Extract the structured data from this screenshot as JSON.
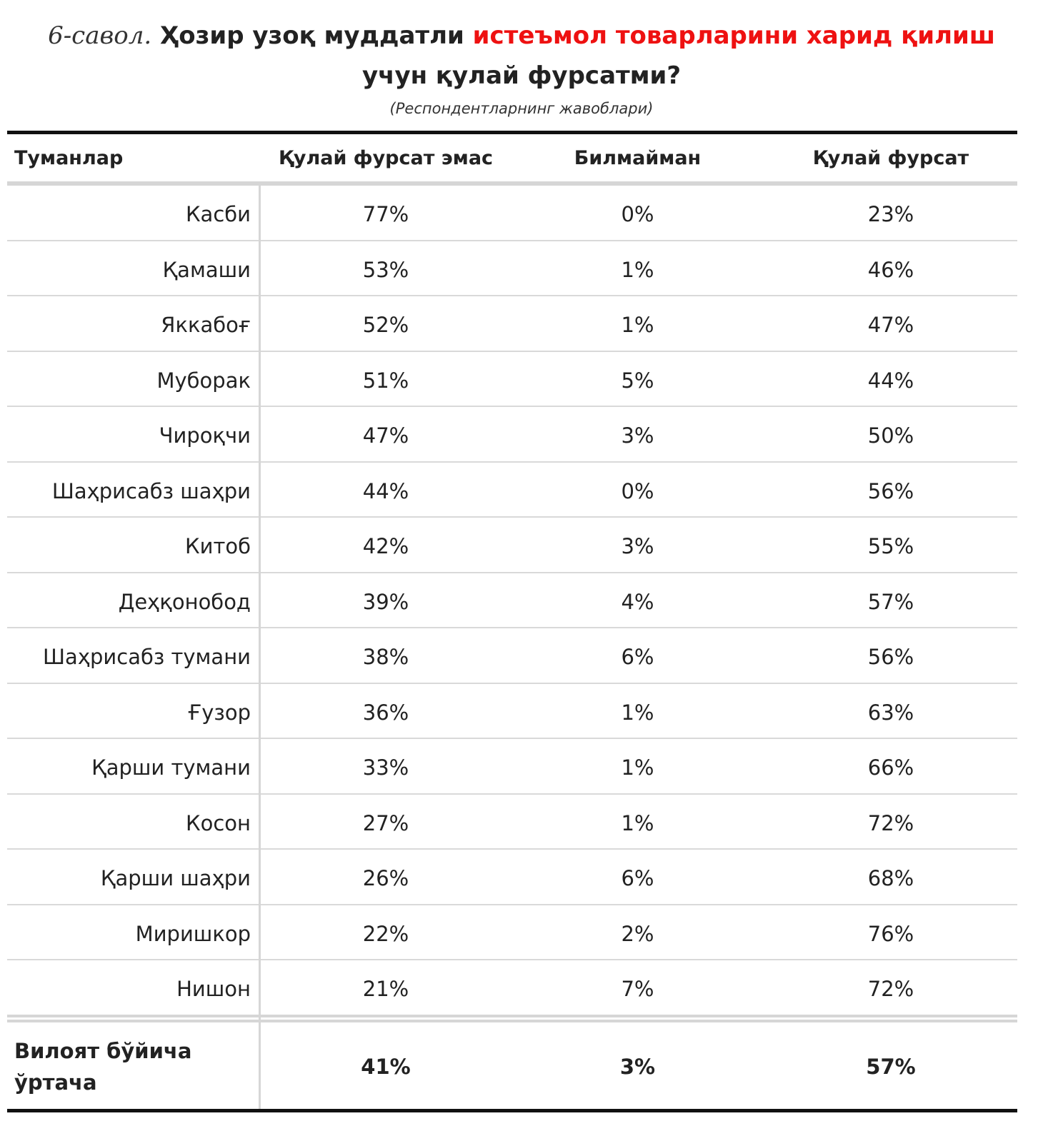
{
  "title": {
    "question_number": "6-савол.",
    "part1": " Ҳозир узоқ муддатли ",
    "highlight": "истеъмол товарларини харид қилиш",
    "part2": "учун қулай фурсатми?"
  },
  "subtitle": "(Респондентларнинг жавоблари)",
  "colors": {
    "highlight": "#ee1111",
    "text": "#222222",
    "rule_dark": "#111111",
    "rule_light": "#d6d6d6"
  },
  "chart_data": {
    "type": "table",
    "columns": [
      "Туманлар",
      "Қулай фурсат эмас",
      "Билмайман",
      "Қулай фурсат"
    ],
    "rows": [
      {
        "name": "Касби",
        "values": [
          "77%",
          "0%",
          "23%"
        ]
      },
      {
        "name": "Қамаши",
        "values": [
          "53%",
          "1%",
          "46%"
        ]
      },
      {
        "name": "Яккабоғ",
        "values": [
          "52%",
          "1%",
          "47%"
        ]
      },
      {
        "name": "Муборак",
        "values": [
          "51%",
          "5%",
          "44%"
        ]
      },
      {
        "name": "Чироқчи",
        "values": [
          "47%",
          "3%",
          "50%"
        ]
      },
      {
        "name": "Шаҳрисабз шаҳри",
        "values": [
          "44%",
          "0%",
          "56%"
        ]
      },
      {
        "name": "Китоб",
        "values": [
          "42%",
          "3%",
          "55%"
        ]
      },
      {
        "name": "Деҳқонобод",
        "values": [
          "39%",
          "4%",
          "57%"
        ]
      },
      {
        "name": "Шаҳрисабз тумани",
        "values": [
          "38%",
          "6%",
          "56%"
        ]
      },
      {
        "name": "Ғузор",
        "values": [
          "36%",
          "1%",
          "63%"
        ]
      },
      {
        "name": "Қарши тумани",
        "values": [
          "33%",
          "1%",
          "66%"
        ]
      },
      {
        "name": "Косон",
        "values": [
          "27%",
          "1%",
          "72%"
        ]
      },
      {
        "name": "Қарши шаҳри",
        "values": [
          "26%",
          "6%",
          "68%"
        ]
      },
      {
        "name": "Миришкор",
        "values": [
          "22%",
          "2%",
          "76%"
        ]
      },
      {
        "name": "Нишон",
        "values": [
          "21%",
          "7%",
          "72%"
        ]
      }
    ],
    "total": {
      "name": "Вилоят бўйича ўртача",
      "values": [
        "41%",
        "3%",
        "57%"
      ]
    }
  }
}
